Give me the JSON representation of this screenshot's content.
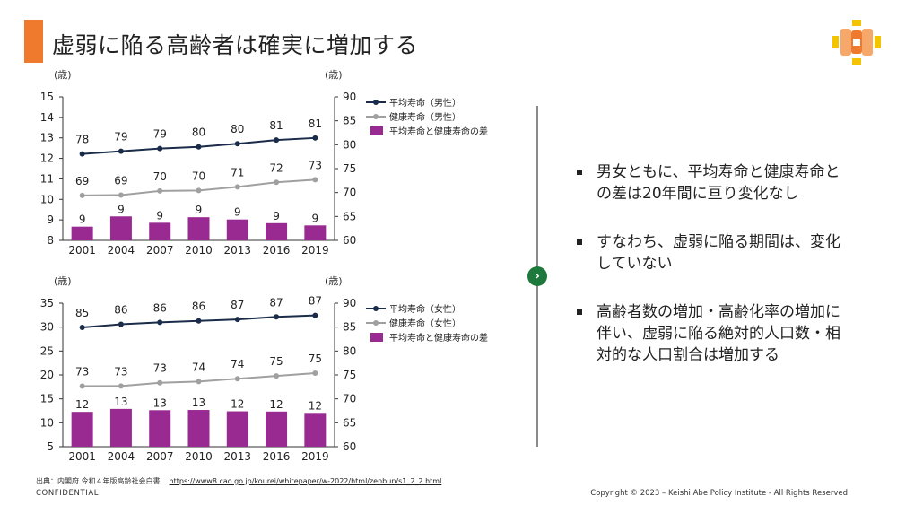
{
  "title": "虚弱に陥る高齢者は確実に増加する",
  "colors": {
    "accent": "#ef7a2e",
    "avg_line": "#1a2c4a",
    "healthy_line": "#a0a0a0",
    "bar": "#992a91",
    "nav": "#1e7a3c"
  },
  "logo_icon": "orange-yellow-cross-logo",
  "chart_data": [
    {
      "type": "bar+line",
      "left_unit": "(歳)",
      "right_unit": "(歳)",
      "categories": [
        "2001",
        "2004",
        "2007",
        "2010",
        "2013",
        "2016",
        "2019"
      ],
      "left_ylim": [
        8,
        15
      ],
      "left_ticks": [
        8,
        9,
        10,
        11,
        12,
        13,
        14,
        15
      ],
      "right_ylim": [
        60,
        90
      ],
      "right_ticks": [
        60,
        65,
        70,
        75,
        80,
        85,
        90
      ],
      "series": [
        {
          "name": "平均寿命（男性）",
          "kind": "line",
          "axis": "right",
          "color": "#1a2c4a",
          "values": [
            78,
            79,
            79,
            80,
            80,
            81,
            81
          ],
          "plot_values": [
            78.07,
            78.64,
            79.19,
            79.55,
            80.21,
            80.98,
            81.41
          ]
        },
        {
          "name": "健康寿命（男性）",
          "kind": "line",
          "axis": "right",
          "color": "#a0a0a0",
          "values": [
            69,
            69,
            70,
            70,
            71,
            72,
            73
          ],
          "plot_values": [
            69.4,
            69.47,
            70.33,
            70.42,
            71.19,
            72.14,
            72.68
          ]
        },
        {
          "name": "平均寿命と健康寿命の差",
          "kind": "bar",
          "axis": "left",
          "color": "#992a91",
          "values": [
            9,
            9,
            9,
            9,
            9,
            9,
            9
          ],
          "plot_values": [
            8.67,
            9.17,
            8.86,
            9.13,
            9.02,
            8.84,
            8.73
          ]
        }
      ]
    },
    {
      "type": "bar+line",
      "left_unit": "(歳)",
      "right_unit": "(歳)",
      "categories": [
        "2001",
        "2004",
        "2007",
        "2010",
        "2013",
        "2016",
        "2019"
      ],
      "left_ylim": [
        5,
        35
      ],
      "left_ticks": [
        5,
        10,
        15,
        20,
        25,
        30,
        35
      ],
      "right_ylim": [
        60,
        90
      ],
      "right_ticks": [
        60,
        65,
        70,
        75,
        80,
        85,
        90
      ],
      "series": [
        {
          "name": "平均寿命（女性）",
          "kind": "line",
          "axis": "right",
          "color": "#1a2c4a",
          "values": [
            85,
            86,
            86,
            86,
            87,
            87,
            87
          ],
          "plot_values": [
            84.93,
            85.59,
            85.99,
            86.3,
            86.61,
            87.14,
            87.45
          ]
        },
        {
          "name": "健康寿命（女性）",
          "kind": "line",
          "axis": "right",
          "color": "#a0a0a0",
          "values": [
            73,
            73,
            73,
            74,
            74,
            75,
            75
          ],
          "plot_values": [
            72.65,
            72.69,
            73.36,
            73.62,
            74.21,
            74.79,
            75.38
          ]
        },
        {
          "name": "平均寿命と健康寿命の差",
          "kind": "bar",
          "axis": "left",
          "color": "#992a91",
          "values": [
            12,
            13,
            13,
            13,
            12,
            12,
            12
          ],
          "plot_values": [
            12.28,
            12.9,
            12.63,
            12.68,
            12.4,
            12.35,
            12.07
          ]
        }
      ]
    }
  ],
  "bullets": [
    "男女ともに、平均寿命と健康寿命との差は20年間に亘り変化なし",
    "すなわち、虚弱に陥る期間は、変化していない",
    "高齢者数の増加・高齢化率の増加に伴い、虚弱に陥る絶対的人口数・相対的な人口割合は増加する"
  ],
  "source_label": "出典：内閣府 令和４年版高齢社会白書",
  "source_url": "https://www8.cao.go.jp/kourei/whitepaper/w-2022/html/zenbun/s1_2_2.html",
  "confidential": "CONFIDENTIAL",
  "copyright": "Copyright © 2023 – Keishi Abe Policy Institute - All Rights Reserved"
}
